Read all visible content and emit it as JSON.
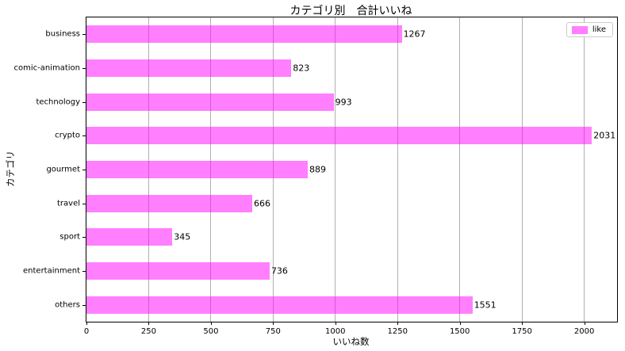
{
  "legend": {
    "label": "like",
    "position": "upper right"
  },
  "chart_data": {
    "type": "bar",
    "orientation": "horizontal",
    "title": "カテゴリ別　合計いいね",
    "xlabel": "いいね数",
    "ylabel": "カテゴリ",
    "categories": [
      "business",
      "comic-animation",
      "technology",
      "crypto",
      "gourmet",
      "travel",
      "sport",
      "entertainment",
      "others"
    ],
    "series": [
      {
        "name": "like",
        "values": [
          1267,
          823,
          993,
          2031,
          889,
          666,
          345,
          736,
          1551
        ]
      }
    ],
    "xticks": [
      0,
      250,
      500,
      750,
      1000,
      1250,
      1500,
      1750,
      2000
    ],
    "xlim": [
      0,
      2132
    ],
    "grid": "vertical",
    "legend_position": "upper right",
    "colors": {
      "bar": "rgba(255,0,255,0.5)",
      "bar_hex_on_white": "#ff80ff",
      "grid": "#b0b0b0",
      "spine": "#000000",
      "text": "#000000",
      "legend_border": "#cccccc",
      "background": "#ffffff"
    }
  }
}
